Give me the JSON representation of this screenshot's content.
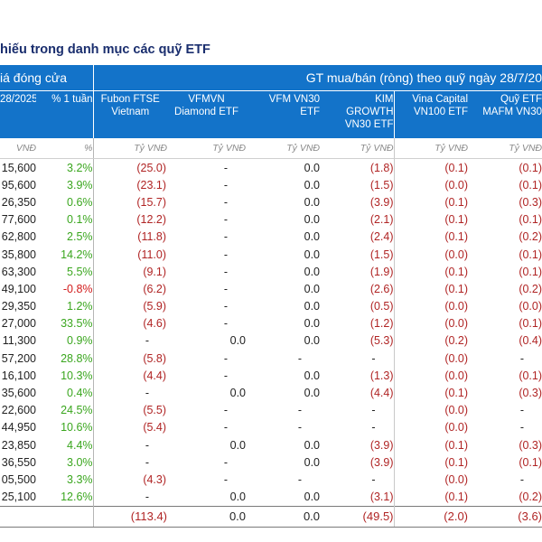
{
  "title": "hiếu trong danh mục các quỹ ETF",
  "header_band": {
    "left": "iá đóng cửa",
    "right": "GT mua/bán (ròng) theo quỹ ngày 28/7/20"
  },
  "columns": [
    {
      "label_lines": [
        "28/2025"
      ],
      "unit": "VNĐ"
    },
    {
      "label_lines": [
        "% 1 tuần"
      ],
      "unit": "%"
    },
    {
      "label_lines": [
        "Fubon FTSE",
        "Vietnam"
      ],
      "unit": "Tỷ VNĐ"
    },
    {
      "label_lines": [
        "VFMVN",
        "Diamond ETF"
      ],
      "unit": "Tỷ VNĐ"
    },
    {
      "label_lines": [
        "VFM VN30",
        "ETF"
      ],
      "unit": "Tỷ VNĐ"
    },
    {
      "label_lines": [
        "KIM",
        "GROWTH",
        "VN30 ETF"
      ],
      "unit": "Tỷ VNĐ"
    },
    {
      "label_lines": [
        "Vina Capital",
        "VN100 ETF"
      ],
      "unit": "Tỷ VNĐ"
    },
    {
      "label_lines": [
        "Quỹ ETF",
        "MAFM VN30"
      ],
      "unit": "Tỷ VNĐ"
    }
  ],
  "rows": [
    [
      "15,600",
      "3.2%",
      "(25.0)",
      "-",
      "0.0",
      "(1.8)",
      "(0.1)",
      "(0.1)"
    ],
    [
      "95,600",
      "3.9%",
      "(23.1)",
      "-",
      "0.0",
      "(1.5)",
      "(0.0)",
      "(0.1)"
    ],
    [
      "26,350",
      "0.6%",
      "(15.7)",
      "-",
      "0.0",
      "(3.9)",
      "(0.1)",
      "(0.3)"
    ],
    [
      "77,600",
      "0.1%",
      "(12.2)",
      "-",
      "0.0",
      "(2.1)",
      "(0.1)",
      "(0.1)"
    ],
    [
      "62,800",
      "2.5%",
      "(11.8)",
      "-",
      "0.0",
      "(2.4)",
      "(0.1)",
      "(0.2)"
    ],
    [
      "35,800",
      "14.2%",
      "(11.0)",
      "-",
      "0.0",
      "(1.5)",
      "(0.0)",
      "(0.1)"
    ],
    [
      "63,300",
      "5.5%",
      "(9.1)",
      "-",
      "0.0",
      "(1.9)",
      "(0.1)",
      "(0.1)"
    ],
    [
      "49,100",
      "-0.8%",
      "(6.2)",
      "-",
      "0.0",
      "(2.6)",
      "(0.1)",
      "(0.2)"
    ],
    [
      "29,350",
      "1.2%",
      "(5.9)",
      "-",
      "0.0",
      "(0.5)",
      "(0.0)",
      "(0.0)"
    ],
    [
      "27,000",
      "33.5%",
      "(4.6)",
      "-",
      "0.0",
      "(1.2)",
      "(0.0)",
      "(0.1)"
    ],
    [
      "11,300",
      "0.9%",
      "-",
      "0.0",
      "0.0",
      "(5.3)",
      "(0.2)",
      "(0.4)"
    ],
    [
      "57,200",
      "28.8%",
      "(5.8)",
      "-",
      "-",
      "-",
      "(0.0)",
      "-"
    ],
    [
      "16,100",
      "10.3%",
      "(4.4)",
      "-",
      "0.0",
      "(1.3)",
      "(0.0)",
      "(0.1)"
    ],
    [
      "35,600",
      "0.4%",
      "-",
      "0.0",
      "0.0",
      "(4.4)",
      "(0.1)",
      "(0.3)"
    ],
    [
      "22,600",
      "24.5%",
      "(5.5)",
      "-",
      "-",
      "-",
      "(0.0)",
      "-"
    ],
    [
      "44,950",
      "10.6%",
      "(5.4)",
      "-",
      "-",
      "-",
      "(0.0)",
      "-"
    ],
    [
      "23,850",
      "4.4%",
      "-",
      "0.0",
      "0.0",
      "(3.9)",
      "(0.1)",
      "(0.3)"
    ],
    [
      "36,550",
      "3.0%",
      "-",
      "-",
      "0.0",
      "(3.9)",
      "(0.1)",
      "(0.1)"
    ],
    [
      "05,500",
      "3.3%",
      "(4.3)",
      "-",
      "-",
      "-",
      "(0.0)",
      "-"
    ],
    [
      "25,100",
      "12.6%",
      "-",
      "0.0",
      "0.0",
      "(3.1)",
      "(0.1)",
      "(0.2)"
    ]
  ],
  "totals": [
    "",
    "",
    "(113.4)",
    "0.0",
    "0.0",
    "(49.5)",
    "(2.0)",
    "(3.6)"
  ],
  "colors": {
    "header_bg": "#1373c9",
    "title": "#1a2e6e",
    "positive": "#3aa61e",
    "negative": "#d21b1b",
    "parenthesized": "#b02424"
  }
}
